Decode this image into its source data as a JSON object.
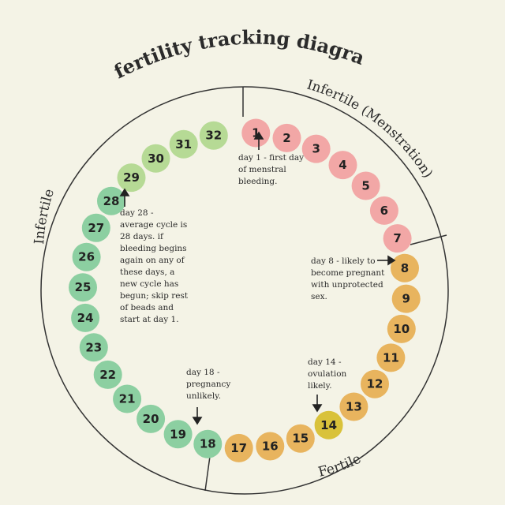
{
  "title": "fertility tracking diagram",
  "sections": {
    "menstruation": "Infertile (Menstration)",
    "fertile": "Fertile",
    "infertile": "Infertile"
  },
  "colors": {
    "background": "#f4f3e6",
    "menstruation": "#f2a7a6",
    "fertile": "#e8b45e",
    "ovulation": "#d9c23a",
    "infertile_light": "#b6da95",
    "infertile": "#8ccfa1",
    "divider": "#333333"
  },
  "beads": [
    {
      "n": "1",
      "group": "menstruation"
    },
    {
      "n": "2",
      "group": "menstruation"
    },
    {
      "n": "3",
      "group": "menstruation"
    },
    {
      "n": "4",
      "group": "menstruation"
    },
    {
      "n": "5",
      "group": "menstruation"
    },
    {
      "n": "6",
      "group": "menstruation"
    },
    {
      "n": "7",
      "group": "menstruation"
    },
    {
      "n": "8",
      "group": "fertile"
    },
    {
      "n": "9",
      "group": "fertile"
    },
    {
      "n": "10",
      "group": "fertile"
    },
    {
      "n": "11",
      "group": "fertile"
    },
    {
      "n": "12",
      "group": "fertile"
    },
    {
      "n": "13",
      "group": "fertile"
    },
    {
      "n": "14",
      "group": "ovulation"
    },
    {
      "n": "15",
      "group": "fertile"
    },
    {
      "n": "16",
      "group": "fertile"
    },
    {
      "n": "17",
      "group": "fertile"
    },
    {
      "n": "18",
      "group": "infertile"
    },
    {
      "n": "19",
      "group": "infertile"
    },
    {
      "n": "20",
      "group": "infertile"
    },
    {
      "n": "21",
      "group": "infertile"
    },
    {
      "n": "22",
      "group": "infertile"
    },
    {
      "n": "23",
      "group": "infertile"
    },
    {
      "n": "24",
      "group": "infertile"
    },
    {
      "n": "25",
      "group": "infertile"
    },
    {
      "n": "26",
      "group": "infertile"
    },
    {
      "n": "27",
      "group": "infertile"
    },
    {
      "n": "28",
      "group": "infertile"
    },
    {
      "n": "29",
      "group": "infertile_light"
    },
    {
      "n": "30",
      "group": "infertile_light"
    },
    {
      "n": "31",
      "group": "infertile_light"
    },
    {
      "n": "32",
      "group": "infertile_light"
    }
  ],
  "notes": {
    "day1": [
      "day 1 - first day",
      "of menstral",
      "bleeding."
    ],
    "day8": [
      "day 8 - likely to",
      "become pregnant",
      "with unprotected",
      "sex."
    ],
    "day14": [
      "day 14 -",
      "ovulation",
      "likely."
    ],
    "day18": [
      "day 18 -",
      "pregnancy",
      "unlikely."
    ],
    "day28": [
      "day 28 -",
      "average cycle is",
      "28 days. if",
      "bleeding begins",
      "again on any of",
      "these days, a",
      "new cycle has",
      "begun; skip rest",
      "of beads and",
      "start at day 1."
    ]
  }
}
